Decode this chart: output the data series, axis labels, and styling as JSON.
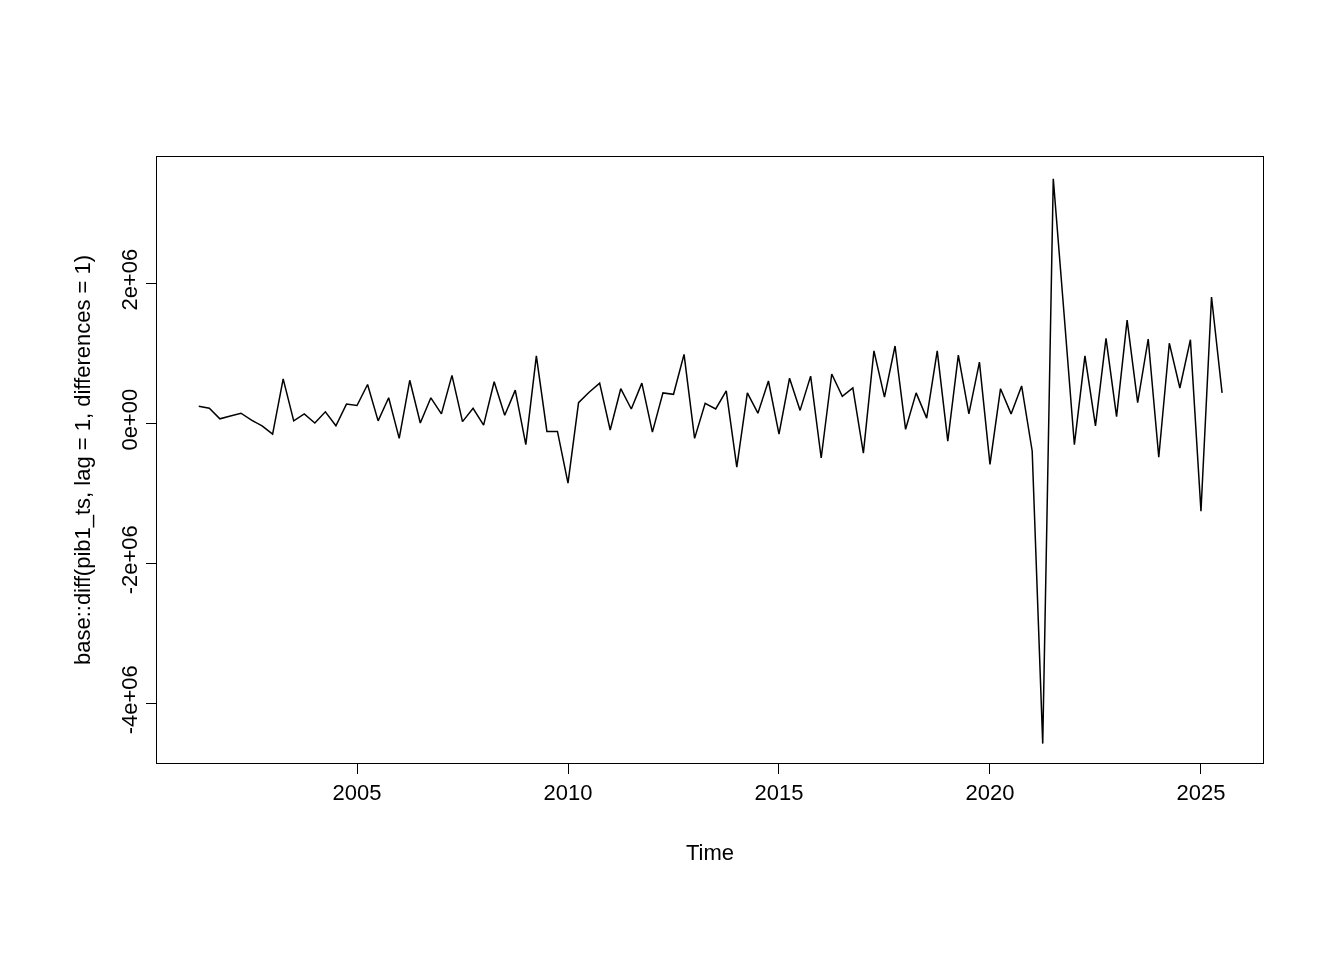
{
  "chart_data": {
    "type": "line",
    "xlabel": "Time",
    "ylabel": "base::diff(pib1_ts, lag = 1, differences = 1)",
    "x": [
      2001.25,
      2001.5,
      2001.75,
      2002,
      2002.25,
      2002.5,
      2002.75,
      2003,
      2003.25,
      2003.5,
      2003.75,
      2004,
      2004.25,
      2004.5,
      2004.75,
      2005,
      2005.25,
      2005.5,
      2005.75,
      2006,
      2006.25,
      2006.5,
      2006.75,
      2007,
      2007.25,
      2007.5,
      2007.75,
      2008,
      2008.25,
      2008.5,
      2008.75,
      2009,
      2009.25,
      2009.5,
      2009.75,
      2010,
      2010.25,
      2010.5,
      2010.75,
      2011,
      2011.25,
      2011.5,
      2011.75,
      2012,
      2012.25,
      2012.5,
      2012.75,
      2013,
      2013.25,
      2013.5,
      2013.75,
      2014,
      2014.25,
      2014.5,
      2014.75,
      2015,
      2015.25,
      2015.5,
      2015.75,
      2016,
      2016.25,
      2016.5,
      2016.75,
      2017,
      2017.25,
      2017.5,
      2017.75,
      2018,
      2018.25,
      2018.5,
      2018.75,
      2019,
      2019.25,
      2019.5,
      2019.75,
      2020,
      2020.25,
      2020.5,
      2020.75,
      2021,
      2021.25,
      2021.5,
      2021.75,
      2022,
      2022.25,
      2022.5,
      2022.75,
      2023,
      2023.25,
      2023.5,
      2023.75,
      2024,
      2024.25,
      2024.5,
      2024.75,
      2025,
      2025.25,
      2025.5
    ],
    "series": [
      {
        "color": "#000000",
        "values": [
          240000,
          210000,
          60000,
          100000,
          140000,
          40000,
          -40000,
          -160000,
          630000,
          30000,
          130000,
          0,
          160000,
          -40000,
          270000,
          250000,
          550000,
          30000,
          360000,
          -220000,
          610000,
          0,
          360000,
          130000,
          680000,
          20000,
          210000,
          -30000,
          590000,
          110000,
          470000,
          -310000,
          960000,
          -120000,
          -120000,
          -860000,
          290000,
          440000,
          570000,
          -100000,
          490000,
          200000,
          570000,
          -130000,
          430000,
          410000,
          980000,
          -220000,
          280000,
          200000,
          460000,
          -630000,
          430000,
          140000,
          600000,
          -160000,
          640000,
          180000,
          670000,
          -500000,
          700000,
          380000,
          500000,
          -430000,
          1030000,
          370000,
          1100000,
          -90000,
          430000,
          70000,
          1030000,
          -260000,
          970000,
          130000,
          870000,
          -590000,
          490000,
          130000,
          530000,
          -400000,
          -4580000,
          3490000,
          1600000,
          -310000,
          960000,
          -40000,
          1210000,
          90000,
          1470000,
          290000,
          1200000,
          -490000,
          1140000,
          500000,
          1190000,
          -1260000,
          1800000,
          430000
        ]
      }
    ],
    "xlim": [
      2000.26,
      2026.47
    ],
    "xticks": [
      2005,
      2010,
      2015,
      2020,
      2025
    ],
    "ylim": [
      -4857000,
      3800000
    ],
    "yticks": [
      {
        "value": -4000000,
        "label": "-4e+06"
      },
      {
        "value": -2000000,
        "label": "-2e+06"
      },
      {
        "value": 0,
        "label": "0e+00"
      },
      {
        "value": 2000000,
        "label": "2e+06"
      }
    ],
    "marker": "none",
    "line_style": "solid"
  }
}
